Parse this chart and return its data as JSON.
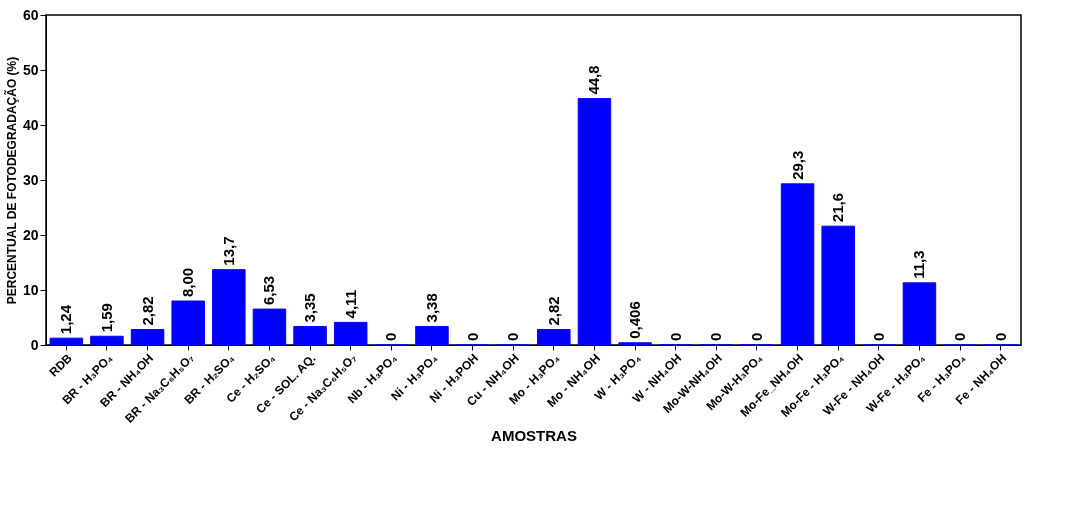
{
  "chart_data": {
    "type": "bar",
    "xlabel": "AMOSTRAS",
    "ylabel": "PERCENTUAL DE FOTODEGRADAÇÃO (%)",
    "categories": [
      "RDB",
      "BR - H₃PO₄",
      "BR - NH₄OH",
      "BR - Na₃C₆H₅O₇",
      "BR - H₂SO₄",
      "Ce - H₂SO₄",
      "Ce - SOL. AQ.",
      "Ce - Na₃C₆H₅O₇",
      "Nb - H₃PO₄",
      "Ni - H₃PO₄",
      "Ni - H₃POH",
      "Cu - NH₄OH",
      "Mo - H₃PO₄",
      "Mo - NH₄OH",
      "W - H₃PO₄",
      "W - NH₄OH",
      "Mo-W-NH₄OH",
      "Mo-W-H₃PO₄",
      "Mo-Fe_NH₄OH",
      "Mo-Fe - H₃PO₄",
      "W-Fe - NH₄OH",
      "W-Fe - H₃PO₄",
      "Fe - H₃PO₄",
      "Fe - NH₄OH"
    ],
    "values": [
      1.24,
      1.59,
      2.82,
      8.0,
      13.7,
      6.53,
      3.35,
      4.11,
      0,
      3.38,
      0,
      0,
      2.82,
      44.8,
      0.406,
      0,
      0,
      0,
      29.3,
      21.6,
      0,
      11.3,
      0,
      0
    ],
    "value_labels": [
      "1,24",
      "1,59",
      "2,82",
      "8,00",
      "13,7",
      "6,53",
      "3,35",
      "4,11",
      "0",
      "3,38",
      "0",
      "0",
      "2,82",
      "44,8",
      "0,406",
      "0",
      "0",
      "0",
      "29,3",
      "21,6",
      "0",
      "11,3",
      "0",
      "0"
    ],
    "color": "#0000ff",
    "ylim": [
      0,
      60
    ],
    "yticks": [
      0,
      10,
      20,
      30,
      40,
      50,
      60
    ],
    "grid": false
  }
}
